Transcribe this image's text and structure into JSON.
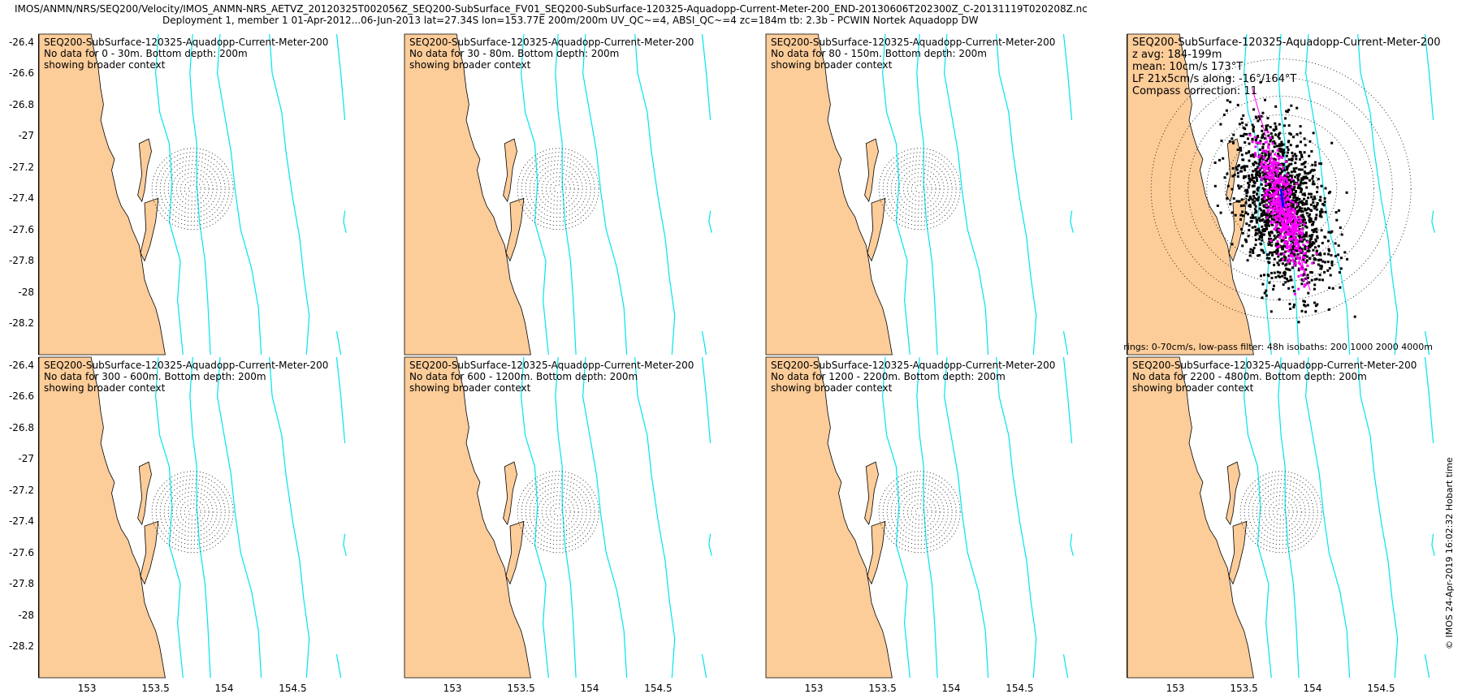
{
  "title": {
    "line1": "IMOS/ANMN/NRS/SEQ200/Velocity/IMOS_ANMN-NRS_AETVZ_20120325T002056Z_SEQ200-SubSurface_FV01_SEQ200-SubSurface-120325-Aquadopp-Current-Meter-200_END-20130606T202300Z_C-20131119T020208Z.nc",
    "line2": "Deployment 1, member 1 01-Apr-2012...06-Jun-2013 lat=27.34S lon=153.77E 200m/200m UV_QC~=4, ABSI_QC~=4 zc=184m tb: 2.3b - PCWIN Nortek Aquadopp DW"
  },
  "colors": {
    "land": "#fccc99",
    "isobath": "#00e5ee",
    "scatter": "#000000",
    "lowpass": "#ff00ff",
    "mean_arrow": "#0000ff"
  },
  "chart_data": {
    "type": "map-grid",
    "xlim": [
      152.65,
      154.9
    ],
    "ylim": [
      -28.4,
      -26.35
    ],
    "xticks": [
      "153",
      "153.5",
      "154",
      "154.5"
    ],
    "xtick_values": [
      153,
      153.5,
      154,
      154.5
    ],
    "yticks": [
      "-26.4",
      "-26.6",
      "-26.8",
      "-27",
      "-27.2",
      "-27.4",
      "-27.6",
      "-27.8",
      "-28",
      "-28.2"
    ],
    "ytick_values": [
      -26.4,
      -26.6,
      -26.8,
      -27,
      -27.2,
      -27.4,
      -27.6,
      -27.8,
      -28,
      -28.2
    ],
    "mooring": {
      "lon": 153.77,
      "lat": -27.34
    },
    "panels": [
      {
        "lines": [
          "SEQ200-SubSurface-120325-Aquadopp-Current-Meter-200",
          "No data for 0 - 30m. Bottom depth: 200m",
          "showing broader context"
        ],
        "has_data": false
      },
      {
        "lines": [
          "SEQ200-SubSurface-120325-Aquadopp-Current-Meter-200",
          "No data for 30 - 80m. Bottom depth: 200m",
          "showing broader context"
        ],
        "has_data": false
      },
      {
        "lines": [
          "SEQ200-SubSurface-120325-Aquadopp-Current-Meter-200",
          "No data for 80 - 150m. Bottom depth: 200m",
          "showing broader context"
        ],
        "has_data": false
      },
      {
        "lines": [
          "SEQ200-SubSurface-120325-Aquadopp-Current-Meter-200",
          "z avg: 184-199m",
          "mean: 10cm/s 173°T",
          "LF 21x5cm/s along: -16°/164°T",
          "Compass correction: 11"
        ],
        "has_data": true,
        "note": "rings: 0-70cm/s, low-pass filter: 48h isobaths: 200 1000 2000 4000m"
      },
      {
        "lines": [
          "SEQ200-SubSurface-120325-Aquadopp-Current-Meter-200",
          "No data for 300 - 600m. Bottom depth: 200m",
          "showing broader context"
        ],
        "has_data": false
      },
      {
        "lines": [
          "SEQ200-SubSurface-120325-Aquadopp-Current-Meter-200",
          "No data for 600 - 1200m. Bottom depth: 200m",
          "showing broader context"
        ],
        "has_data": false
      },
      {
        "lines": [
          "SEQ200-SubSurface-120325-Aquadopp-Current-Meter-200",
          "No data for 1200 - 2200m. Bottom depth: 200m",
          "showing broader context"
        ],
        "has_data": false
      },
      {
        "lines": [
          "SEQ200-SubSurface-120325-Aquadopp-Current-Meter-200",
          "No data for 2200 - 4800m. Bottom depth: 200m",
          "showing broader context"
        ],
        "has_data": false
      }
    ],
    "velocity": {
      "mean_speed_cm_s": 10,
      "mean_dir_deg_T": 173,
      "lf_major_cm_s": 21,
      "lf_minor_cm_s": 5,
      "along_dir_deg_T": 164,
      "ring_max_cm_s": 70
    }
  },
  "stamp": "© IMOS 24-Apr-2019 16:02:32 Hobart time"
}
